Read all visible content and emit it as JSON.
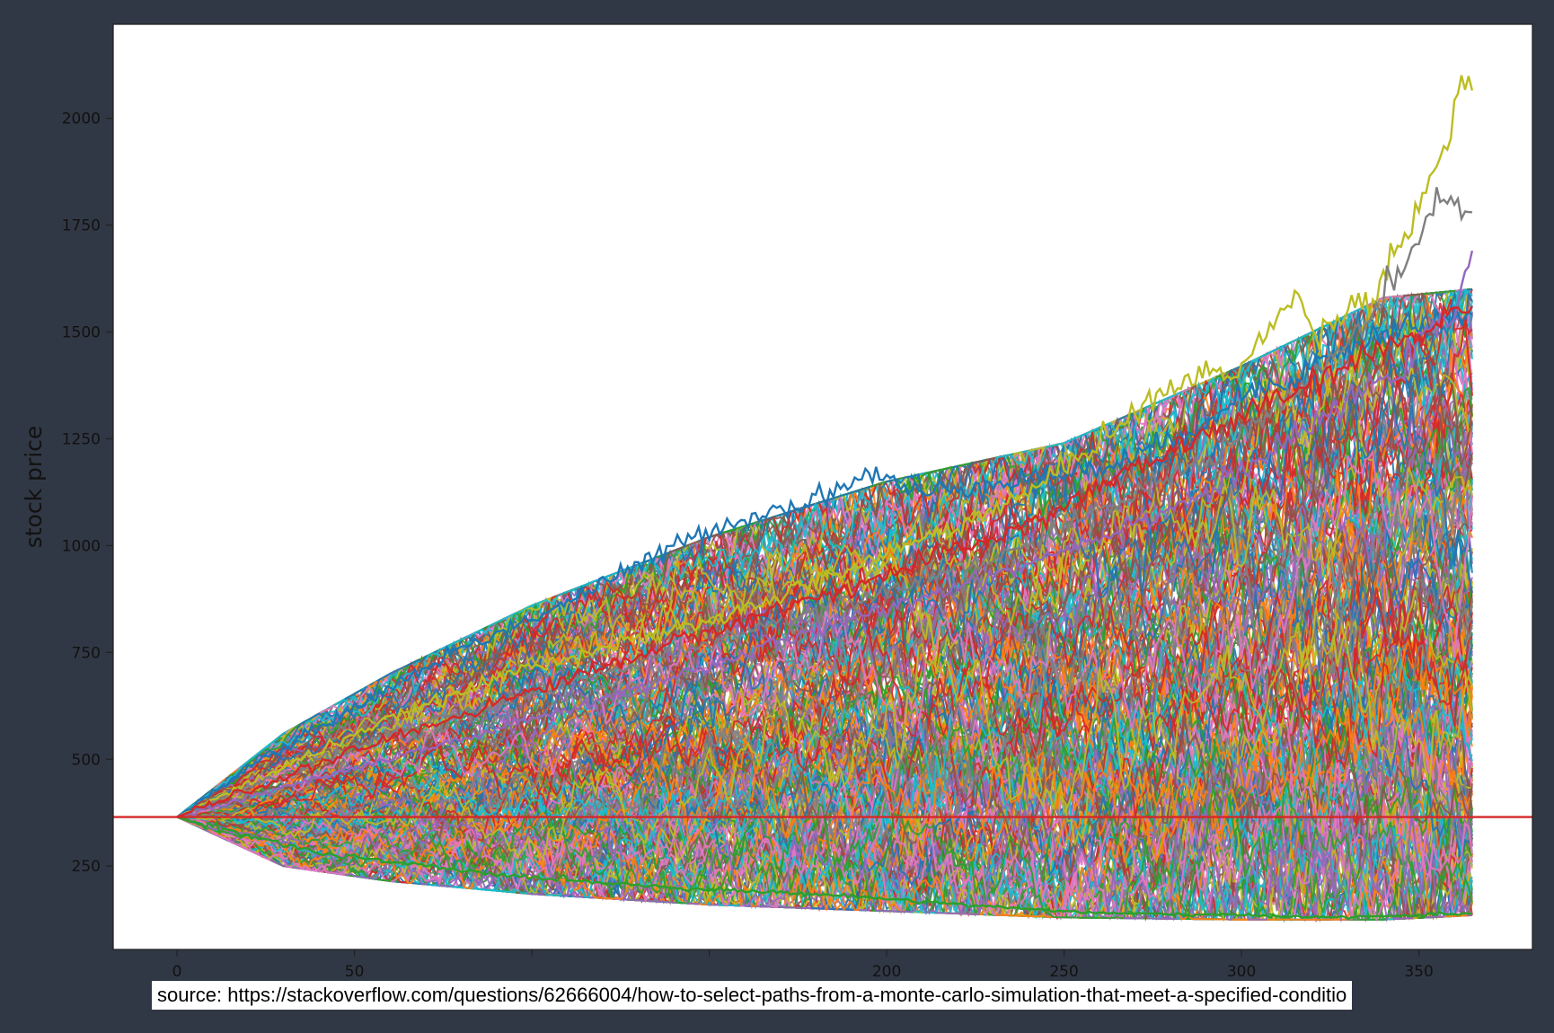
{
  "chart_data": {
    "type": "line",
    "title": "",
    "xlabel": "",
    "ylabel": "stock price",
    "xlim": [
      -18,
      382
    ],
    "ylim": [
      55,
      2220
    ],
    "x_ticks": [
      0,
      50,
      100,
      150,
      200,
      250,
      300,
      350
    ],
    "x_tick_labels": [
      "0",
      "50",
      "",
      "",
      "200",
      "250",
      "300",
      "350"
    ],
    "y_ticks": [
      250,
      500,
      750,
      1000,
      1250,
      1500,
      1750,
      2000
    ],
    "y_tick_labels": [
      "250",
      "500",
      "750",
      "1000",
      "1250",
      "1500",
      "1750",
      "2000"
    ],
    "grid": false,
    "legend": "none",
    "simulation": {
      "n_days": 365,
      "start_price": 365,
      "n_paths_drawn": 280,
      "final_price_range": [
        140,
        2065
      ]
    },
    "reference_line": {
      "y": 365,
      "color": "#d62728"
    },
    "envelope": {
      "x": [
        0,
        30,
        60,
        100,
        150,
        200,
        250,
        300,
        340,
        365
      ],
      "upper": [
        365,
        560,
        700,
        860,
        1020,
        1150,
        1240,
        1420,
        1580,
        1600
      ],
      "lower": [
        365,
        250,
        215,
        185,
        160,
        145,
        130,
        125,
        125,
        135
      ]
    },
    "series": [
      {
        "values": [
          [
            0,
            365
          ],
          [
            20,
            480
          ],
          [
            50,
            620
          ],
          [
            80,
            760
          ],
          [
            100,
            830
          ],
          [
            120,
            910
          ],
          [
            150,
            1040
          ],
          [
            180,
            1110
          ],
          [
            195,
            1170
          ],
          [
            210,
            1120
          ],
          [
            230,
            1150
          ],
          [
            260,
            1180
          ],
          [
            280,
            1240
          ],
          [
            300,
            1350
          ],
          [
            320,
            1420
          ],
          [
            340,
            1500
          ],
          [
            365,
            1540
          ]
        ]
      },
      {
        "values": [
          [
            0,
            365
          ],
          [
            50,
            560
          ],
          [
            100,
            720
          ],
          [
            150,
            820
          ],
          [
            200,
            980
          ],
          [
            240,
            1120
          ],
          [
            268,
            1300
          ],
          [
            282,
            1380
          ],
          [
            300,
            1420
          ],
          [
            315,
            1580
          ],
          [
            322,
            1500
          ],
          [
            338,
            1600
          ],
          [
            355,
            1880
          ],
          [
            362,
            2085
          ],
          [
            365,
            2065
          ]
        ]
      },
      {
        "values": [
          [
            0,
            365
          ],
          [
            60,
            560
          ],
          [
            120,
            700
          ],
          [
            180,
            850
          ],
          [
            240,
            1000
          ],
          [
            290,
            1200
          ],
          [
            320,
            1390
          ],
          [
            335,
            1520
          ],
          [
            350,
            1700
          ],
          [
            357,
            1840
          ],
          [
            362,
            1790
          ],
          [
            365,
            1780
          ]
        ]
      },
      {
        "values": [
          [
            0,
            365
          ],
          [
            60,
            500
          ],
          [
            120,
            640
          ],
          [
            180,
            800
          ],
          [
            240,
            960
          ],
          [
            290,
            1120
          ],
          [
            320,
            1280
          ],
          [
            345,
            1420
          ],
          [
            360,
            1550
          ],
          [
            365,
            1690
          ]
        ]
      },
      {
        "values": [
          [
            0,
            365
          ],
          [
            50,
            520
          ],
          [
            100,
            660
          ],
          [
            150,
            800
          ],
          [
            200,
            930
          ],
          [
            240,
            1050
          ],
          [
            270,
            1180
          ],
          [
            300,
            1300
          ],
          [
            330,
            1420
          ],
          [
            350,
            1500
          ],
          [
            365,
            1560
          ]
        ]
      },
      {
        "values": [
          [
            0,
            365
          ],
          [
            40,
            280
          ],
          [
            90,
            230
          ],
          [
            140,
            200
          ],
          [
            190,
            180
          ],
          [
            230,
            155
          ],
          [
            260,
            140
          ],
          [
            300,
            135
          ],
          [
            330,
            130
          ],
          [
            365,
            140
          ]
        ]
      }
    ]
  },
  "source_caption": "source: https://stackoverflow.com/questions/62666004/how-to-select-paths-from-a-monte-carlo-simulation-that-meet-a-specified-conditio"
}
